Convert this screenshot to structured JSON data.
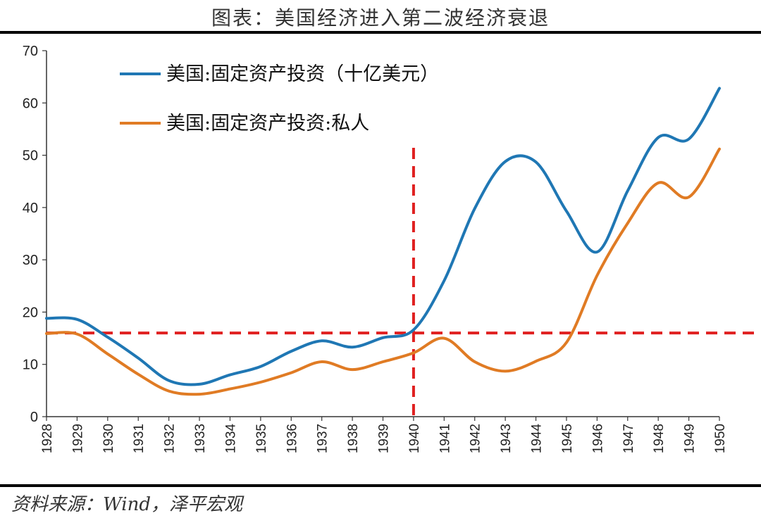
{
  "title": "图表：美国经济进入第二波经济衰退",
  "source": "资料来源：Wind，泽平宏观",
  "colors": {
    "blue": "#1f77b4",
    "orange": "#e07b24",
    "ref": "#e02020"
  },
  "chart_data": {
    "type": "line",
    "x": [
      1928,
      1929,
      1930,
      1931,
      1932,
      1933,
      1934,
      1935,
      1936,
      1937,
      1938,
      1939,
      1940,
      1941,
      1942,
      1943,
      1944,
      1945,
      1946,
      1947,
      1948,
      1949,
      1950
    ],
    "xticks": [
      "1928",
      "1929",
      "1930",
      "1931",
      "1932",
      "1933",
      "1934",
      "1935",
      "1936",
      "1937",
      "1938",
      "1939",
      "1940",
      "1941",
      "1942",
      "1943",
      "1944",
      "1945",
      "1946",
      "1947",
      "1948",
      "1949",
      "1950"
    ],
    "ylim": [
      0,
      70
    ],
    "yticks": [
      "0",
      "10",
      "20",
      "30",
      "40",
      "50",
      "60",
      "70"
    ],
    "reference_lines": {
      "horizontal_y": 16,
      "vertical_x": 1940
    },
    "series": [
      {
        "name": "美国:固定资产投资（十亿美元）",
        "color": "#1f77b4",
        "values": [
          18.8,
          18.6,
          15.2,
          11.2,
          6.9,
          6.2,
          8.0,
          9.6,
          12.5,
          14.5,
          13.3,
          15.1,
          16.6,
          26.0,
          39.8,
          48.8,
          48.7,
          39.3,
          31.5,
          43.2,
          53.4,
          53.1,
          62.8
        ]
      },
      {
        "name": "美国:固定资产投资:私人",
        "color": "#e07b24",
        "values": [
          15.9,
          15.8,
          12.0,
          8.1,
          4.9,
          4.3,
          5.3,
          6.6,
          8.4,
          10.5,
          9.0,
          10.5,
          12.2,
          15.0,
          10.5,
          8.7,
          10.6,
          14.2,
          27.0,
          37.0,
          44.7,
          42.0,
          51.2
        ]
      }
    ],
    "legend": "top-left"
  }
}
